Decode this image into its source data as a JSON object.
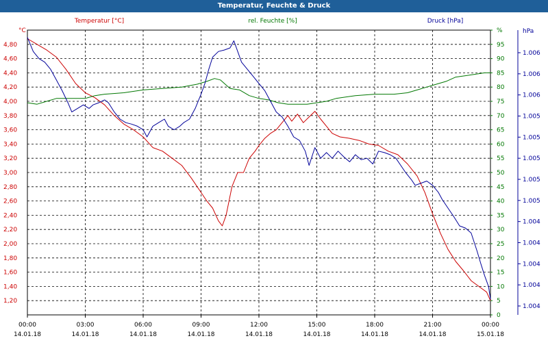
{
  "window": {
    "title": "Temperatur, Feuchte & Druck"
  },
  "colors": {
    "temperature": "#cc0000",
    "humidity": "#007700",
    "pressure": "#000099",
    "titlebar": "#1f5f99"
  },
  "chart_data": {
    "type": "line",
    "grid": true,
    "legend": "top",
    "x": {
      "range_hours": [
        0,
        24
      ],
      "ticks": [
        {
          "time": "00:00",
          "date": "14.01.18"
        },
        {
          "time": "03:00",
          "date": "14.01.18"
        },
        {
          "time": "06:00",
          "date": "14.01.18"
        },
        {
          "time": "09:00",
          "date": "14.01.18"
        },
        {
          "time": "12:00",
          "date": "14.01.18"
        },
        {
          "time": "15:00",
          "date": "14.01.18"
        },
        {
          "time": "18:00",
          "date": "14.01.18"
        },
        {
          "time": "21:00",
          "date": "14.01.18"
        },
        {
          "time": "00:00",
          "date": "15.01.18"
        }
      ]
    },
    "axes": {
      "temperature": {
        "unit_label": "°C",
        "range": [
          1.0,
          5.0
        ],
        "ticks": [
          "1,20",
          "1,40",
          "1,60",
          "1,80",
          "2,00",
          "2,20",
          "2,40",
          "2,60",
          "2,80",
          "3,00",
          "3,20",
          "3,40",
          "3,60",
          "3,80",
          "4,00",
          "4,20",
          "4,40",
          "4,60",
          "4,80"
        ]
      },
      "humidity": {
        "unit_label": "%",
        "range": [
          0,
          100
        ],
        "ticks": [
          "0",
          "5",
          "10",
          "15",
          "20",
          "25",
          "30",
          "35",
          "40",
          "45",
          "50",
          "55",
          "60",
          "65",
          "70",
          "75",
          "80",
          "85",
          "90",
          "95",
          "%"
        ]
      },
      "pressure": {
        "unit_label": "hPa",
        "ticks": [
          "1.004",
          "1.004",
          "1.004",
          "1.004",
          "1.004",
          "1.005",
          "1.005",
          "1.005",
          "1.005",
          "1.005",
          "1.006",
          "1.006",
          "1.006"
        ]
      }
    },
    "series": [
      {
        "name": "Temperatur [°C]",
        "axis": "temperature",
        "points": [
          [
            0,
            4.88
          ],
          [
            0.5,
            4.8
          ],
          [
            1,
            4.72
          ],
          [
            1.5,
            4.62
          ],
          [
            2,
            4.45
          ],
          [
            2.5,
            4.25
          ],
          [
            3,
            4.12
          ],
          [
            3.5,
            4.05
          ],
          [
            4,
            3.95
          ],
          [
            4.5,
            3.8
          ],
          [
            5,
            3.68
          ],
          [
            5.5,
            3.6
          ],
          [
            6,
            3.5
          ],
          [
            6.5,
            3.35
          ],
          [
            7,
            3.3
          ],
          [
            7.5,
            3.2
          ],
          [
            8,
            3.1
          ],
          [
            8.5,
            2.92
          ],
          [
            9,
            2.72
          ],
          [
            9.3,
            2.6
          ],
          [
            9.6,
            2.5
          ],
          [
            9.9,
            2.32
          ],
          [
            10.1,
            2.25
          ],
          [
            10.3,
            2.4
          ],
          [
            10.6,
            2.8
          ],
          [
            10.9,
            3.0
          ],
          [
            11.2,
            3.0
          ],
          [
            11.5,
            3.2
          ],
          [
            11.8,
            3.3
          ],
          [
            12,
            3.38
          ],
          [
            12.3,
            3.48
          ],
          [
            12.6,
            3.55
          ],
          [
            12.9,
            3.6
          ],
          [
            13.2,
            3.7
          ],
          [
            13.5,
            3.8
          ],
          [
            13.7,
            3.72
          ],
          [
            14,
            3.82
          ],
          [
            14.3,
            3.7
          ],
          [
            14.6,
            3.78
          ],
          [
            14.9,
            3.86
          ],
          [
            15.2,
            3.75
          ],
          [
            15.5,
            3.65
          ],
          [
            15.8,
            3.55
          ],
          [
            16.2,
            3.5
          ],
          [
            16.7,
            3.48
          ],
          [
            17.2,
            3.45
          ],
          [
            17.7,
            3.4
          ],
          [
            18.2,
            3.38
          ],
          [
            18.7,
            3.3
          ],
          [
            19.2,
            3.25
          ],
          [
            19.7,
            3.12
          ],
          [
            20.2,
            2.95
          ],
          [
            20.6,
            2.72
          ],
          [
            21,
            2.42
          ],
          [
            21.4,
            2.15
          ],
          [
            21.8,
            1.92
          ],
          [
            22.2,
            1.75
          ],
          [
            22.6,
            1.62
          ],
          [
            23,
            1.48
          ],
          [
            23.5,
            1.38
          ],
          [
            23.8,
            1.32
          ],
          [
            24,
            1.2
          ]
        ]
      },
      {
        "name": "rel. Feuchte [%]",
        "axis": "humidity",
        "points": [
          [
            0,
            74.5
          ],
          [
            0.5,
            74
          ],
          [
            1,
            75
          ],
          [
            1.5,
            76
          ],
          [
            2,
            76
          ],
          [
            2.5,
            76
          ],
          [
            3,
            76
          ],
          [
            3.5,
            77
          ],
          [
            4,
            77.5
          ],
          [
            5,
            78
          ],
          [
            6,
            79
          ],
          [
            7,
            79.5
          ],
          [
            8,
            80
          ],
          [
            8.8,
            81
          ],
          [
            9.3,
            82
          ],
          [
            9.7,
            83
          ],
          [
            10,
            82.5
          ],
          [
            10.5,
            79.5
          ],
          [
            11,
            79
          ],
          [
            11.5,
            77
          ],
          [
            12,
            76
          ],
          [
            12.5,
            75.5
          ],
          [
            13,
            74.5
          ],
          [
            13.5,
            74
          ],
          [
            14,
            74
          ],
          [
            14.5,
            74
          ],
          [
            15,
            74.5
          ],
          [
            15.5,
            75
          ],
          [
            16,
            76
          ],
          [
            17,
            77
          ],
          [
            18,
            77.5
          ],
          [
            19,
            77.5
          ],
          [
            19.7,
            78
          ],
          [
            20.2,
            79
          ],
          [
            20.7,
            80
          ],
          [
            21.2,
            81
          ],
          [
            21.7,
            82
          ],
          [
            22.2,
            83.5
          ],
          [
            22.7,
            84
          ],
          [
            23.2,
            84.5
          ],
          [
            23.7,
            85
          ],
          [
            24,
            85
          ]
        ]
      },
      {
        "name": "Druck [hPa]",
        "axis": "pressure",
        "points_plot_scale": "temperature",
        "points": [
          [
            0,
            4.9
          ],
          [
            0.3,
            4.7
          ],
          [
            0.6,
            4.6
          ],
          [
            0.9,
            4.55
          ],
          [
            1.2,
            4.45
          ],
          [
            1.5,
            4.3
          ],
          [
            1.8,
            4.15
          ],
          [
            2.1,
            3.98
          ],
          [
            2.3,
            3.85
          ],
          [
            2.6,
            3.9
          ],
          [
            2.9,
            3.95
          ],
          [
            3.2,
            3.9
          ],
          [
            3.4,
            3.95
          ],
          [
            3.7,
            3.98
          ],
          [
            4,
            4.02
          ],
          [
            4.2,
            3.98
          ],
          [
            4.5,
            3.85
          ],
          [
            4.8,
            3.75
          ],
          [
            5.1,
            3.7
          ],
          [
            5.4,
            3.68
          ],
          [
            5.7,
            3.65
          ],
          [
            6,
            3.6
          ],
          [
            6.2,
            3.5
          ],
          [
            6.5,
            3.65
          ],
          [
            6.8,
            3.7
          ],
          [
            7.1,
            3.75
          ],
          [
            7.3,
            3.65
          ],
          [
            7.6,
            3.6
          ],
          [
            7.9,
            3.65
          ],
          [
            8.1,
            3.7
          ],
          [
            8.4,
            3.75
          ],
          [
            8.7,
            3.9
          ],
          [
            9,
            4.1
          ],
          [
            9.2,
            4.25
          ],
          [
            9.4,
            4.45
          ],
          [
            9.6,
            4.62
          ],
          [
            9.9,
            4.7
          ],
          [
            10.2,
            4.72
          ],
          [
            10.5,
            4.75
          ],
          [
            10.7,
            4.85
          ],
          [
            10.9,
            4.7
          ],
          [
            11.1,
            4.55
          ],
          [
            11.4,
            4.45
          ],
          [
            11.7,
            4.35
          ],
          [
            12,
            4.25
          ],
          [
            12.3,
            4.15
          ],
          [
            12.6,
            4.0
          ],
          [
            12.9,
            3.85
          ],
          [
            13.2,
            3.78
          ],
          [
            13.5,
            3.65
          ],
          [
            13.8,
            3.5
          ],
          [
            14.1,
            3.45
          ],
          [
            14.4,
            3.3
          ],
          [
            14.6,
            3.1
          ],
          [
            14.9,
            3.35
          ],
          [
            15.2,
            3.2
          ],
          [
            15.5,
            3.28
          ],
          [
            15.8,
            3.2
          ],
          [
            16.1,
            3.3
          ],
          [
            16.4,
            3.22
          ],
          [
            16.7,
            3.15
          ],
          [
            17,
            3.25
          ],
          [
            17.3,
            3.18
          ],
          [
            17.6,
            3.2
          ],
          [
            17.9,
            3.12
          ],
          [
            18.2,
            3.3
          ],
          [
            18.5,
            3.28
          ],
          [
            18.8,
            3.25
          ],
          [
            19.1,
            3.2
          ],
          [
            19.3,
            3.12
          ],
          [
            19.6,
            3.0
          ],
          [
            19.9,
            2.9
          ],
          [
            20.1,
            2.82
          ],
          [
            20.4,
            2.85
          ],
          [
            20.7,
            2.88
          ],
          [
            21,
            2.82
          ],
          [
            21.3,
            2.72
          ],
          [
            21.5,
            2.62
          ],
          [
            21.8,
            2.5
          ],
          [
            22.1,
            2.38
          ],
          [
            22.4,
            2.25
          ],
          [
            22.7,
            2.22
          ],
          [
            23,
            2.15
          ],
          [
            23.3,
            1.9
          ],
          [
            23.5,
            1.72
          ],
          [
            23.7,
            1.55
          ],
          [
            23.9,
            1.4
          ],
          [
            24,
            1.22
          ]
        ]
      }
    ]
  }
}
